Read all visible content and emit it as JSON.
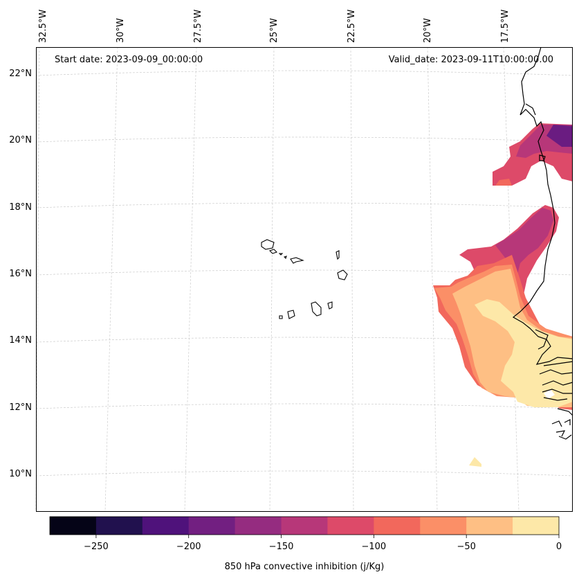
{
  "map": {
    "start_label": "Start date: 2023-09-09_00:00:00",
    "valid_label": "Valid_date: 2023-09-11T10:00:00.00",
    "lon_labels": [
      "32.5°W",
      "30°W",
      "27.5°W",
      "25°W",
      "22.5°W",
      "20°W",
      "17.5°W"
    ],
    "lat_labels": [
      "22°N",
      "20°N",
      "18°N",
      "16°N",
      "14°N",
      "12°N",
      "10°N"
    ],
    "field_colors": {
      "neg150_neg125": "#b73779",
      "neg125_neg100": "#dd4a69",
      "neg175_neg150": "#8c2981",
      "neg200_neg175": "#6a1c81",
      "neg100_neg75": "#f2685c",
      "neg75_neg50": "#fb8f67",
      "neg50_neg25": "#febf84",
      "neg25_0": "#fde8a8"
    }
  },
  "colorbar": {
    "label": "850 hPa convective inhibition (j/Kg)",
    "colors": [
      "#050417",
      "#21114e",
      "#4f127b",
      "#721f81",
      "#952c80",
      "#b73779",
      "#dd4a69",
      "#f2685c",
      "#fb8f67",
      "#febf84",
      "#fde8a8"
    ],
    "tick_labels": [
      "−250",
      "−200",
      "−150",
      "−100",
      "−50",
      "0"
    ],
    "tick_values": [
      -250,
      -200,
      -150,
      -100,
      -50,
      0
    ],
    "range": [
      -275,
      0
    ]
  }
}
